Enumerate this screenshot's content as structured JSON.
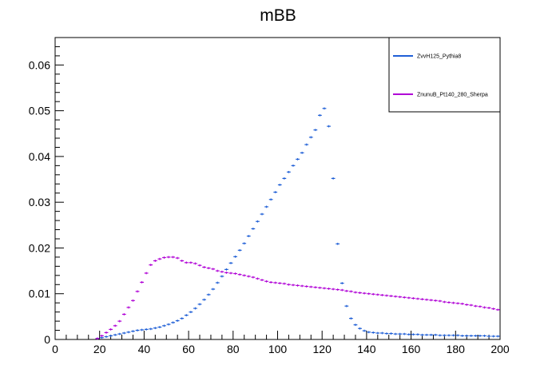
{
  "chart_data": {
    "type": "scatter",
    "title": "mBB",
    "xlabel": "",
    "ylabel": "",
    "xlim": [
      0,
      200
    ],
    "ylim": [
      0,
      0.066
    ],
    "x_ticks": [
      0,
      20,
      40,
      60,
      80,
      100,
      120,
      140,
      160,
      180,
      200
    ],
    "x_tick_labels": [
      "0",
      "20",
      "40",
      "60",
      "80",
      "100",
      "120",
      "140",
      "160",
      "180",
      "200"
    ],
    "y_ticks": [
      0,
      0.01,
      0.02,
      0.03,
      0.04,
      0.05,
      0.06
    ],
    "y_tick_labels": [
      "0",
      "0.01",
      "0.02",
      "0.03",
      "0.04",
      "0.05",
      "0.06"
    ],
    "bin_width": 2,
    "x": [
      1,
      3,
      5,
      7,
      9,
      11,
      13,
      15,
      17,
      19,
      21,
      23,
      25,
      27,
      29,
      31,
      33,
      35,
      37,
      39,
      41,
      43,
      45,
      47,
      49,
      51,
      53,
      55,
      57,
      59,
      61,
      63,
      65,
      67,
      69,
      71,
      73,
      75,
      77,
      79,
      81,
      83,
      85,
      87,
      89,
      91,
      93,
      95,
      97,
      99,
      101,
      103,
      105,
      107,
      109,
      111,
      113,
      115,
      117,
      119,
      121,
      123,
      125,
      127,
      129,
      131,
      133,
      135,
      137,
      139,
      141,
      143,
      145,
      147,
      149,
      151,
      153,
      155,
      157,
      159,
      161,
      163,
      165,
      167,
      169,
      171,
      173,
      175,
      177,
      179,
      181,
      183,
      185,
      187,
      189,
      191,
      193,
      195,
      197,
      199
    ],
    "series": [
      {
        "name": "ZvvH125_Pythia8",
        "color": "#1f5fd6",
        "values": [
          0,
          0,
          0,
          0,
          0,
          0,
          0,
          0,
          0,
          0.0002,
          0.0004,
          0.0006,
          0.0008,
          0.001,
          0.0012,
          0.0014,
          0.0016,
          0.0018,
          0.002,
          0.0021,
          0.0022,
          0.0023,
          0.0025,
          0.0027,
          0.003,
          0.0033,
          0.0037,
          0.0041,
          0.0046,
          0.0053,
          0.006,
          0.0068,
          0.0077,
          0.0087,
          0.0098,
          0.011,
          0.0124,
          0.0138,
          0.0153,
          0.0167,
          0.0181,
          0.0195,
          0.021,
          0.0226,
          0.0242,
          0.0258,
          0.0274,
          0.029,
          0.0306,
          0.0322,
          0.0338,
          0.0352,
          0.0366,
          0.038,
          0.0394,
          0.0408,
          0.0426,
          0.0442,
          0.0458,
          0.049,
          0.0505,
          0.0466,
          0.0352,
          0.0209,
          0.0123,
          0.0073,
          0.0046,
          0.0032,
          0.0024,
          0.0019,
          0.0016,
          0.0015,
          0.0014,
          0.0014,
          0.0013,
          0.0013,
          0.0012,
          0.0012,
          0.0012,
          0.0011,
          0.0011,
          0.0011,
          0.001,
          0.001,
          0.001,
          0.001,
          0.0009,
          0.0009,
          0.0009,
          0.0009,
          0.0009,
          0.0008,
          0.0008,
          0.0008,
          0.0008,
          0.0008,
          0.0008,
          0.0007,
          0.0007,
          0.0007
        ]
      },
      {
        "name": "ZnunuB_Pt140_280_Sherpa",
        "color": "#b000d6",
        "values": [
          0,
          0,
          0,
          0,
          0,
          0,
          0,
          0,
          0,
          0.0002,
          0.0008,
          0.0015,
          0.0022,
          0.003,
          0.004,
          0.0055,
          0.007,
          0.0085,
          0.0105,
          0.0125,
          0.0145,
          0.0163,
          0.0172,
          0.0176,
          0.0179,
          0.018,
          0.018,
          0.0178,
          0.0172,
          0.0168,
          0.0168,
          0.0166,
          0.0162,
          0.0158,
          0.0156,
          0.0154,
          0.015,
          0.0148,
          0.0146,
          0.0145,
          0.0144,
          0.0142,
          0.014,
          0.0138,
          0.0136,
          0.0133,
          0.013,
          0.0127,
          0.0125,
          0.0124,
          0.0123,
          0.0122,
          0.012,
          0.0119,
          0.0118,
          0.0117,
          0.0116,
          0.0115,
          0.0114,
          0.0113,
          0.0112,
          0.0111,
          0.011,
          0.0109,
          0.0108,
          0.0106,
          0.0105,
          0.0103,
          0.0102,
          0.0101,
          0.01,
          0.0099,
          0.0098,
          0.0097,
          0.0096,
          0.0095,
          0.0094,
          0.0093,
          0.0092,
          0.0091,
          0.009,
          0.0089,
          0.0088,
          0.0087,
          0.0086,
          0.0085,
          0.0084,
          0.0082,
          0.0081,
          0.008,
          0.0079,
          0.0078,
          0.0076,
          0.0075,
          0.0073,
          0.0072,
          0.007,
          0.0069,
          0.0067,
          0.0065
        ]
      }
    ],
    "legend": {
      "position": "top-right",
      "entries": [
        "ZvvH125_Pythia8",
        "ZnunuB_Pt140_280_Sherpa"
      ]
    },
    "grid": false
  }
}
